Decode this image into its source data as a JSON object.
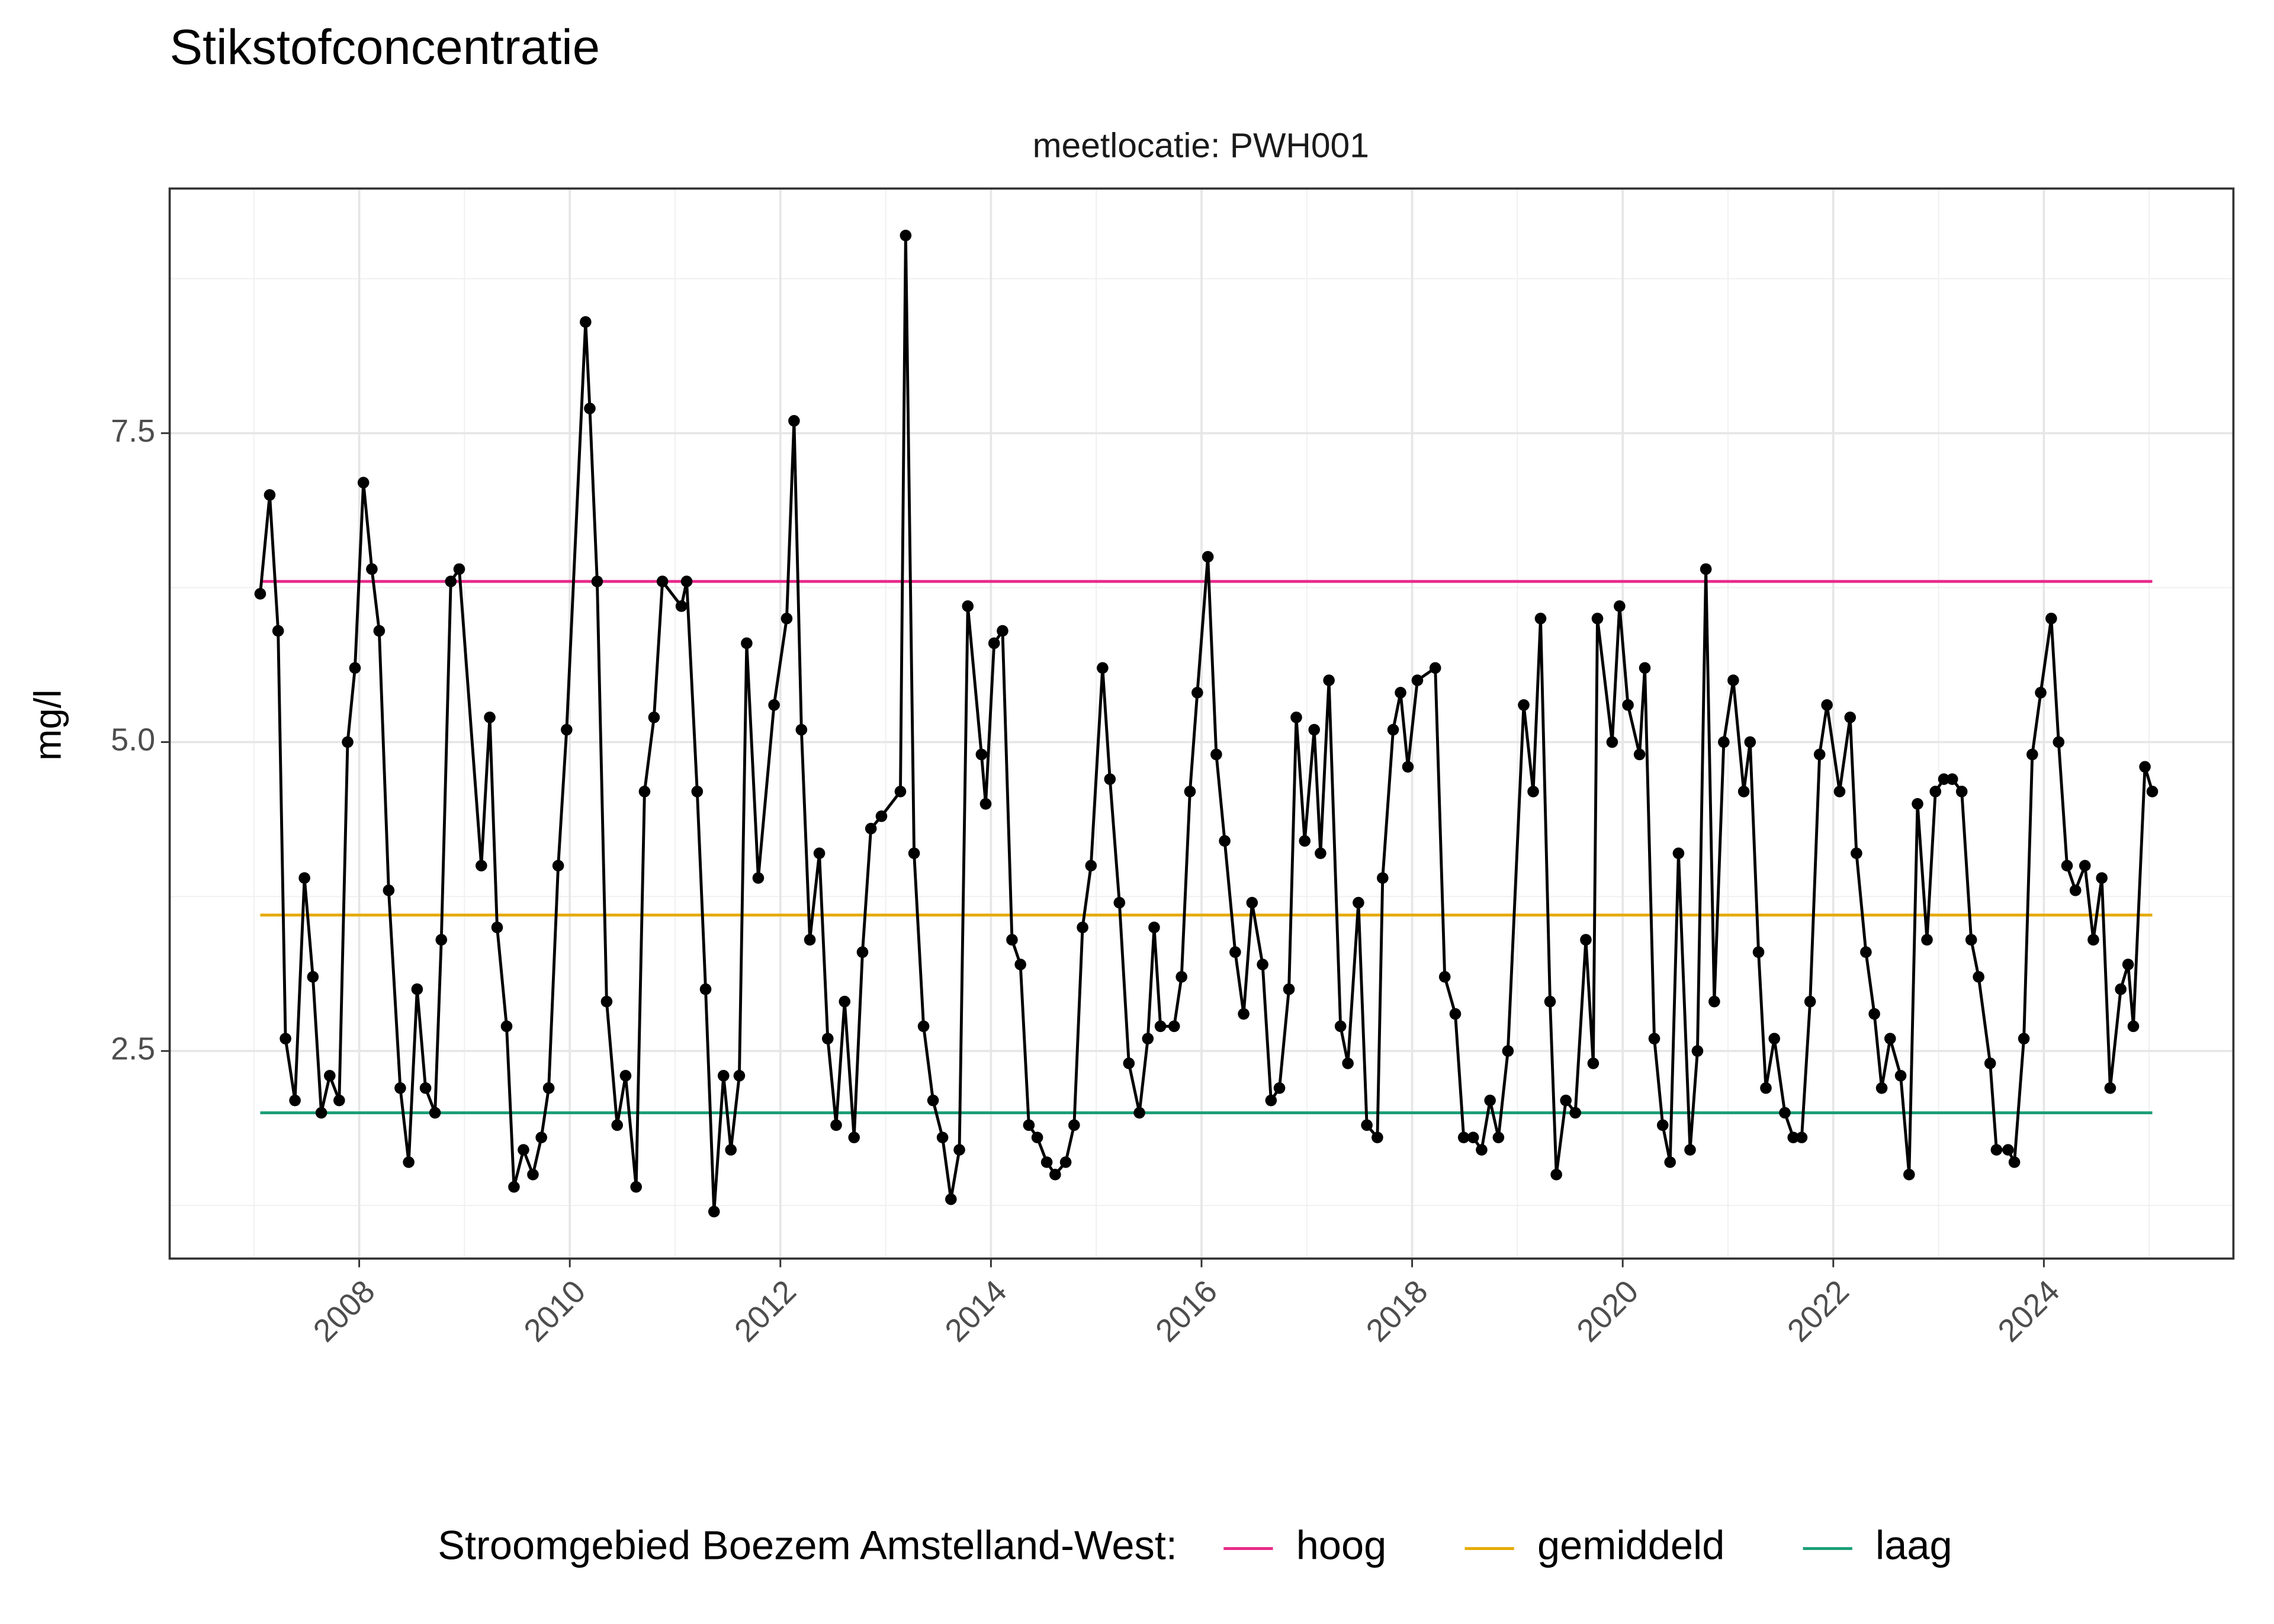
{
  "chart_data": {
    "type": "line",
    "title": "Stikstofconcentratie",
    "subtitle": "meetlocatie: PWH001",
    "y_label": "mg/l",
    "color": "#000000",
    "x": [
      2007.06,
      2007.15,
      2007.23,
      2007.3,
      2007.39,
      2007.48,
      2007.56,
      2007.64,
      2007.72,
      2007.81,
      2007.89,
      2007.96,
      2008.04,
      2008.12,
      2008.19,
      2008.28,
      2008.39,
      2008.47,
      2008.55,
      2008.63,
      2008.72,
      2008.78,
      2008.87,
      2008.95,
      2009.16,
      2009.24,
      2009.31,
      2009.4,
      2009.47,
      2009.56,
      2009.65,
      2009.73,
      2009.8,
      2009.89,
      2009.97,
      2010.15,
      2010.19,
      2010.26,
      2010.35,
      2010.45,
      2010.53,
      2010.63,
      2010.71,
      2010.8,
      2010.88,
      2011.06,
      2011.11,
      2011.21,
      2011.29,
      2011.37,
      2011.46,
      2011.53,
      2011.61,
      2011.68,
      2011.79,
      2011.94,
      2012.06,
      2012.13,
      2012.2,
      2012.28,
      2012.37,
      2012.45,
      2012.53,
      2012.61,
      2012.7,
      2012.78,
      2012.86,
      2012.96,
      2013.14,
      2013.19,
      2013.27,
      2013.36,
      2013.45,
      2013.54,
      2013.62,
      2013.7,
      2013.78,
      2013.91,
      2013.95,
      2014.03,
      2014.11,
      2014.2,
      2014.28,
      2014.36,
      2014.44,
      2014.53,
      2014.61,
      2014.71,
      2014.79,
      2014.87,
      2014.95,
      2015.06,
      2015.13,
      2015.22,
      2015.31,
      2015.41,
      2015.49,
      2015.55,
      2015.61,
      2015.74,
      2015.81,
      2015.89,
      2015.96,
      2016.06,
      2016.14,
      2016.22,
      2016.32,
      2016.4,
      2016.48,
      2016.58,
      2016.66,
      2016.74,
      2016.83,
      2016.9,
      2016.98,
      2017.07,
      2017.13,
      2017.21,
      2017.32,
      2017.39,
      2017.49,
      2017.57,
      2017.67,
      2017.72,
      2017.82,
      2017.89,
      2017.96,
      2018.05,
      2018.22,
      2018.31,
      2018.41,
      2018.49,
      2018.58,
      2018.66,
      2018.74,
      2018.82,
      2018.91,
      2019.06,
      2019.15,
      2019.22,
      2019.31,
      2019.37,
      2019.46,
      2019.55,
      2019.65,
      2019.72,
      2019.76,
      2019.9,
      2019.97,
      2020.05,
      2020.16,
      2020.21,
      2020.3,
      2020.38,
      2020.45,
      2020.53,
      2020.64,
      2020.71,
      2020.79,
      2020.87,
      2020.96,
      2021.05,
      2021.15,
      2021.21,
      2021.29,
      2021.36,
      2021.44,
      2021.54,
      2021.62,
      2021.7,
      2021.78,
      2021.87,
      2021.94,
      2022.06,
      2022.16,
      2022.22,
      2022.31,
      2022.39,
      2022.46,
      2022.54,
      2022.64,
      2022.72,
      2022.8,
      2022.89,
      2022.97,
      2023.05,
      2023.13,
      2023.22,
      2023.31,
      2023.38,
      2023.49,
      2023.55,
      2023.66,
      2023.72,
      2023.81,
      2023.89,
      2023.97,
      2024.07,
      2024.14,
      2024.22,
      2024.3,
      2024.39,
      2024.47,
      2024.55,
      2024.63,
      2024.73,
      2024.8,
      2024.85,
      2024.96,
      2025.03
    ],
    "values": [
      6.2,
      7.0,
      5.9,
      2.6,
      2.1,
      3.9,
      3.1,
      2.0,
      2.3,
      2.1,
      5.0,
      5.6,
      7.1,
      6.4,
      5.9,
      3.8,
      2.2,
      1.6,
      3.0,
      2.2,
      2.0,
      3.4,
      6.3,
      6.4,
      4.0,
      5.2,
      3.5,
      2.7,
      1.4,
      1.7,
      1.5,
      1.8,
      2.2,
      4.0,
      5.1,
      8.4,
      7.7,
      6.3,
      2.9,
      1.9,
      2.3,
      1.4,
      4.6,
      5.2,
      6.3,
      6.1,
      6.3,
      4.6,
      3.0,
      1.2,
      2.3,
      1.7,
      2.3,
      5.8,
      3.9,
      5.3,
      6.0,
      7.6,
      5.1,
      3.4,
      4.1,
      2.6,
      1.9,
      2.9,
      1.8,
      3.3,
      4.3,
      4.4,
      4.6,
      9.1,
      4.1,
      2.7,
      2.1,
      1.8,
      1.3,
      1.7,
      6.1,
      4.9,
      4.5,
      5.8,
      5.9,
      3.4,
      3.2,
      1.9,
      1.8,
      1.6,
      1.5,
      1.6,
      1.9,
      3.5,
      4.0,
      5.6,
      4.7,
      3.7,
      2.4,
      2.0,
      2.6,
      3.5,
      2.7,
      2.7,
      3.1,
      4.6,
      5.4,
      6.5,
      4.9,
      4.2,
      3.3,
      2.8,
      3.7,
      3.2,
      2.1,
      2.2,
      3.0,
      5.2,
      4.2,
      5.1,
      4.1,
      5.5,
      2.7,
      2.4,
      3.7,
      1.9,
      1.8,
      3.9,
      5.1,
      5.4,
      4.8,
      5.5,
      5.6,
      3.1,
      2.8,
      1.8,
      1.8,
      1.7,
      2.1,
      1.8,
      2.5,
      5.3,
      4.6,
      6.0,
      2.9,
      1.5,
      2.1,
      2.0,
      3.4,
      2.4,
      6.0,
      5.0,
      6.1,
      5.3,
      4.9,
      5.6,
      2.6,
      1.9,
      1.6,
      4.1,
      1.7,
      2.5,
      6.4,
      2.9,
      5.0,
      5.5,
      4.6,
      5.0,
      3.3,
      2.2,
      2.6,
      2.0,
      1.8,
      1.8,
      2.9,
      4.9,
      5.3,
      4.6,
      5.2,
      4.1,
      3.3,
      2.8,
      2.2,
      2.6,
      2.3,
      1.5,
      4.5,
      3.4,
      4.6,
      4.7,
      4.7,
      4.6,
      3.4,
      3.1,
      2.4,
      1.7,
      1.7,
      1.6,
      2.6,
      4.9,
      5.4,
      6.0,
      5.0,
      4.0,
      3.8,
      4.0,
      3.4,
      3.9,
      2.2,
      3.0,
      3.2,
      2.7,
      4.8,
      4.6
    ],
    "reference_lines": [
      {
        "name": "hoog",
        "color": "#e7298a",
        "value": 6.3
      },
      {
        "name": "gemiddeld",
        "color": "#e6ab02",
        "value": 3.6
      },
      {
        "name": "laag",
        "color": "#1b9e77",
        "value": 2.0
      }
    ],
    "legend_title": "Stroomgebied Boezem Amstelland-West:",
    "legend_position": "bottom",
    "xlim": [
      2006.2,
      2025.8
    ],
    "xticks": [
      2008,
      2010,
      2012,
      2014,
      2016,
      2018,
      2020,
      2022,
      2024
    ],
    "ylim": [
      0.82,
      9.48
    ],
    "yticks": [
      2.5,
      {
        "value": 5,
        "label": "5.0"
      },
      7.5
    ],
    "grid": true
  }
}
